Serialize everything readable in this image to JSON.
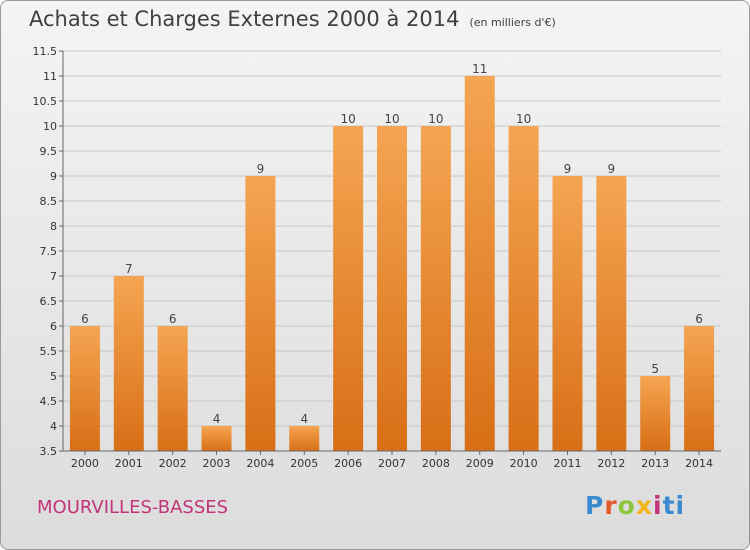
{
  "header": {
    "title": "Achats et Charges Externes 2000 à 2014",
    "unit": "(en milliers d'€)"
  },
  "footer": {
    "place": "MOURVILLES-BASSES",
    "brand_letters": [
      "P",
      "r",
      "o",
      "x",
      "i",
      "ti"
    ]
  },
  "colors": {
    "bar_top": "#f5a552",
    "bar_bottom": "#d86f16",
    "grid": "#c8c8c8"
  },
  "chart_data": {
    "type": "bar",
    "title": "Achats et Charges Externes 2000 à 2014",
    "subtitle": "(en milliers d'€)",
    "categories": [
      "2000",
      "2001",
      "2002",
      "2003",
      "2004",
      "2005",
      "2006",
      "2007",
      "2008",
      "2009",
      "2010",
      "2011",
      "2012",
      "2013",
      "2014"
    ],
    "values": [
      6,
      7,
      6,
      4,
      9,
      4,
      10,
      10,
      10,
      11,
      10,
      9,
      9,
      5,
      6
    ],
    "ylim": [
      3.5,
      11.5
    ],
    "yticks": [
      "3.5",
      "4",
      "4.5",
      "5",
      "5.5",
      "6",
      "6.5",
      "7",
      "7.5",
      "8",
      "8.5",
      "9",
      "9.5",
      "10",
      "10.5",
      "11",
      "11.5"
    ],
    "grid": true
  }
}
